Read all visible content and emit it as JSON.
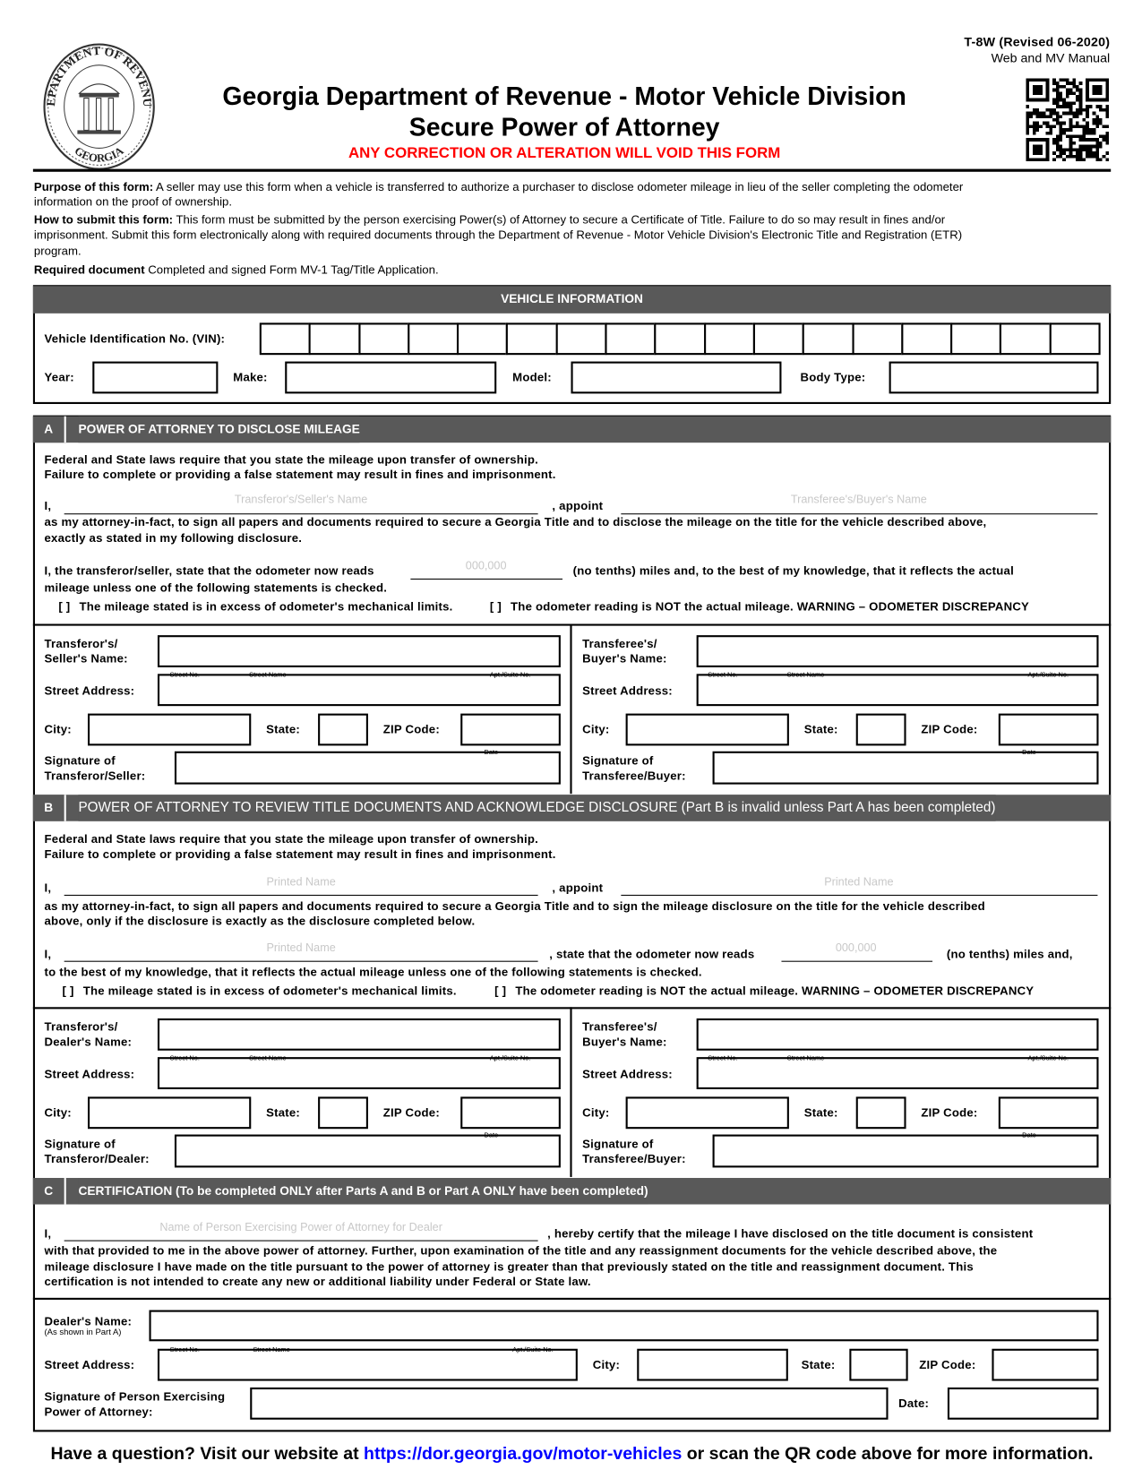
{
  "seal": {
    "top_text": "DEPARTMENT OF REVENUE",
    "bottom_text": "GEORGIA"
  },
  "header": {
    "form_id": "T-8W (Revised 06-2020)",
    "edition": "Web and MV Manual",
    "title": "Georgia Department of Revenue - Motor Vehicle Division",
    "subtitle": "Secure Power of Attorney",
    "warning": "ANY CORRECTION OR ALTERATION WILL VOID THIS FORM",
    "warning_color": "#ff0000",
    "qr_icon": "qr-code"
  },
  "intro": {
    "purpose_label": "Purpose of this form:",
    "purpose_text_1": " A seller may use this form when a vehicle is transferred to authorize a purchaser to disclose odometer mileage in lieu of the seller completing the odometer",
    "purpose_text_2": "information on the proof of ownership.",
    "submit_label": "How to submit this form:",
    "submit_text_1": " This form must be submitted by the person exercising Power(s) of Attorney to secure a Certificate of Title. Failure to do so may result in fines and/or",
    "submit_text_2": "imprisonment. Submit this form electronically along with required documents through the Department of Revenue - Motor Vehicle Division's Electronic Title and Registration (ETR)",
    "submit_text_3": "program.",
    "required_label": "Required document",
    "required_text": " Completed and signed Form MV-1 Tag/Title Application."
  },
  "vehicle": {
    "heading": "VEHICLE INFORMATION",
    "vin_label": "Vehicle Identification No. (VIN):",
    "year_label": "Year:",
    "make_label": "Make:",
    "model_label": "Model:",
    "body_label": "Body Type:"
  },
  "fields": {
    "street_label": "Street Address:",
    "city_label": "City:",
    "state_label": "State:",
    "zip_label": "ZIP Code:",
    "street_no": "Street No.",
    "street_name": "Street Name",
    "apt": "Apt./Suite No.",
    "date": "Date"
  },
  "part_a": {
    "letter": "A",
    "heading": "POWER OF ATTORNEY TO DISCLOSE MILEAGE",
    "law_1": "Federal and State laws require that you state the mileage upon transfer of ownership.",
    "law_2": "Failure to complete or providing a false statement may result in fines and imprisonment.",
    "i_label": "I,",
    "transferor_placeholder": "Transferor's/Seller's Name",
    "appoint": ", appoint",
    "transferee_placeholder": "Transferee's/Buyer's Name",
    "attorney_1": "as my attorney-in-fact, to sign all papers and documents required to secure a Georgia Title and to disclose the mileage on the title for the vehicle described above,",
    "attorney_2": "exactly as stated in my following disclosure.",
    "odo_text": "I, the transferor/seller, state that the odometer now reads",
    "odo_placeholder": "000,000",
    "odo_after": "(no tenths) miles and, to the best of my knowledge, that it reflects the actual",
    "odo_text_2": "mileage unless one of the following statements is checked.",
    "check_box": "[   ]",
    "check_1": "The mileage stated is in excess of odometer's mechanical limits.",
    "check_2": "The odometer reading is NOT the actual mileage. WARNING – ODOMETER DISCREPANCY",
    "left": {
      "name_1": "Transferor's/",
      "name_2": "Seller's Name:",
      "sig_1": "Signature of",
      "sig_2": "Transferor/Seller:"
    },
    "right": {
      "name_1": "Transferee's/",
      "name_2": "Buyer's Name:",
      "sig_1": "Signature of",
      "sig_2": "Transferee/Buyer:"
    }
  },
  "part_b": {
    "letter": "B",
    "heading": "POWER OF ATTORNEY TO REVIEW TITLE DOCUMENTS AND ACKNOWLEDGE DISCLOSURE (Part B is invalid unless Part A has been completed)",
    "law_1": "Federal and State laws require that you state the mileage upon transfer of ownership.",
    "law_2": "Failure to complete or providing a false statement may result in fines and imprisonment.",
    "i_label": "I,",
    "printed_placeholder": "Printed Name",
    "appoint": ", appoint",
    "attorney_1": "as my attorney-in-fact, to sign all papers and documents required to secure a Georgia Title and to sign the mileage disclosure on the title for the vehicle described",
    "attorney_2": "above, only if the disclosure is exactly as the disclosure completed below.",
    "state_text": ", state that the odometer now reads",
    "odo_placeholder": "000,000",
    "odo_after": "(no tenths) miles and,",
    "odo_text_2": "to the best of my knowledge, that it reflects the actual mileage unless one of the following statements is checked.",
    "check_box": "[   ]",
    "check_1": "The mileage stated is in excess of odometer's mechanical limits.",
    "check_2": "The odometer reading is NOT the actual mileage. WARNING – ODOMETER DISCREPANCY",
    "left": {
      "name_1": "Transferor's/",
      "name_2": "Dealer's Name:",
      "sig_1": "Signature of",
      "sig_2": "Transferor/Dealer:"
    },
    "right": {
      "name_1": "Transferee's/",
      "name_2": "Buyer's Name:",
      "sig_1": "Signature of",
      "sig_2": "Transferee/Buyer:"
    }
  },
  "part_c": {
    "letter": "C",
    "heading": "CERTIFICATION (To be completed ONLY after Parts A and B or Part A ONLY have been completed)",
    "i_label": "I,",
    "name_placeholder": "Name of Person Exercising Power of Attorney for Dealer",
    "cert_1": ", hereby certify that the mileage I have disclosed on the title document is consistent",
    "cert_2": "with that provided to me in the above power of attorney. Further, upon examination of the title and any reassignment documents for the vehicle described above, the",
    "cert_3": "mileage disclosure I have made on the title pursuant to the power of attorney is greater than that previously stated on the title and reassignment document. This",
    "cert_4": "certification is not intended to create any new or additional liability under Federal or State law.",
    "dealer_label": "Dealer's Name:",
    "dealer_note": "(As shown in Part A)",
    "sig_1": "Signature of Person Exercising",
    "sig_2": "Power of Attorney:",
    "date_label": "Date:"
  },
  "footer": {
    "before": "Have a question? Visit our website at ",
    "link": "https://dor.georgia.gov/motor-vehicles",
    "after": " or scan the QR code above for more information.",
    "link_color": "#0000ff"
  }
}
